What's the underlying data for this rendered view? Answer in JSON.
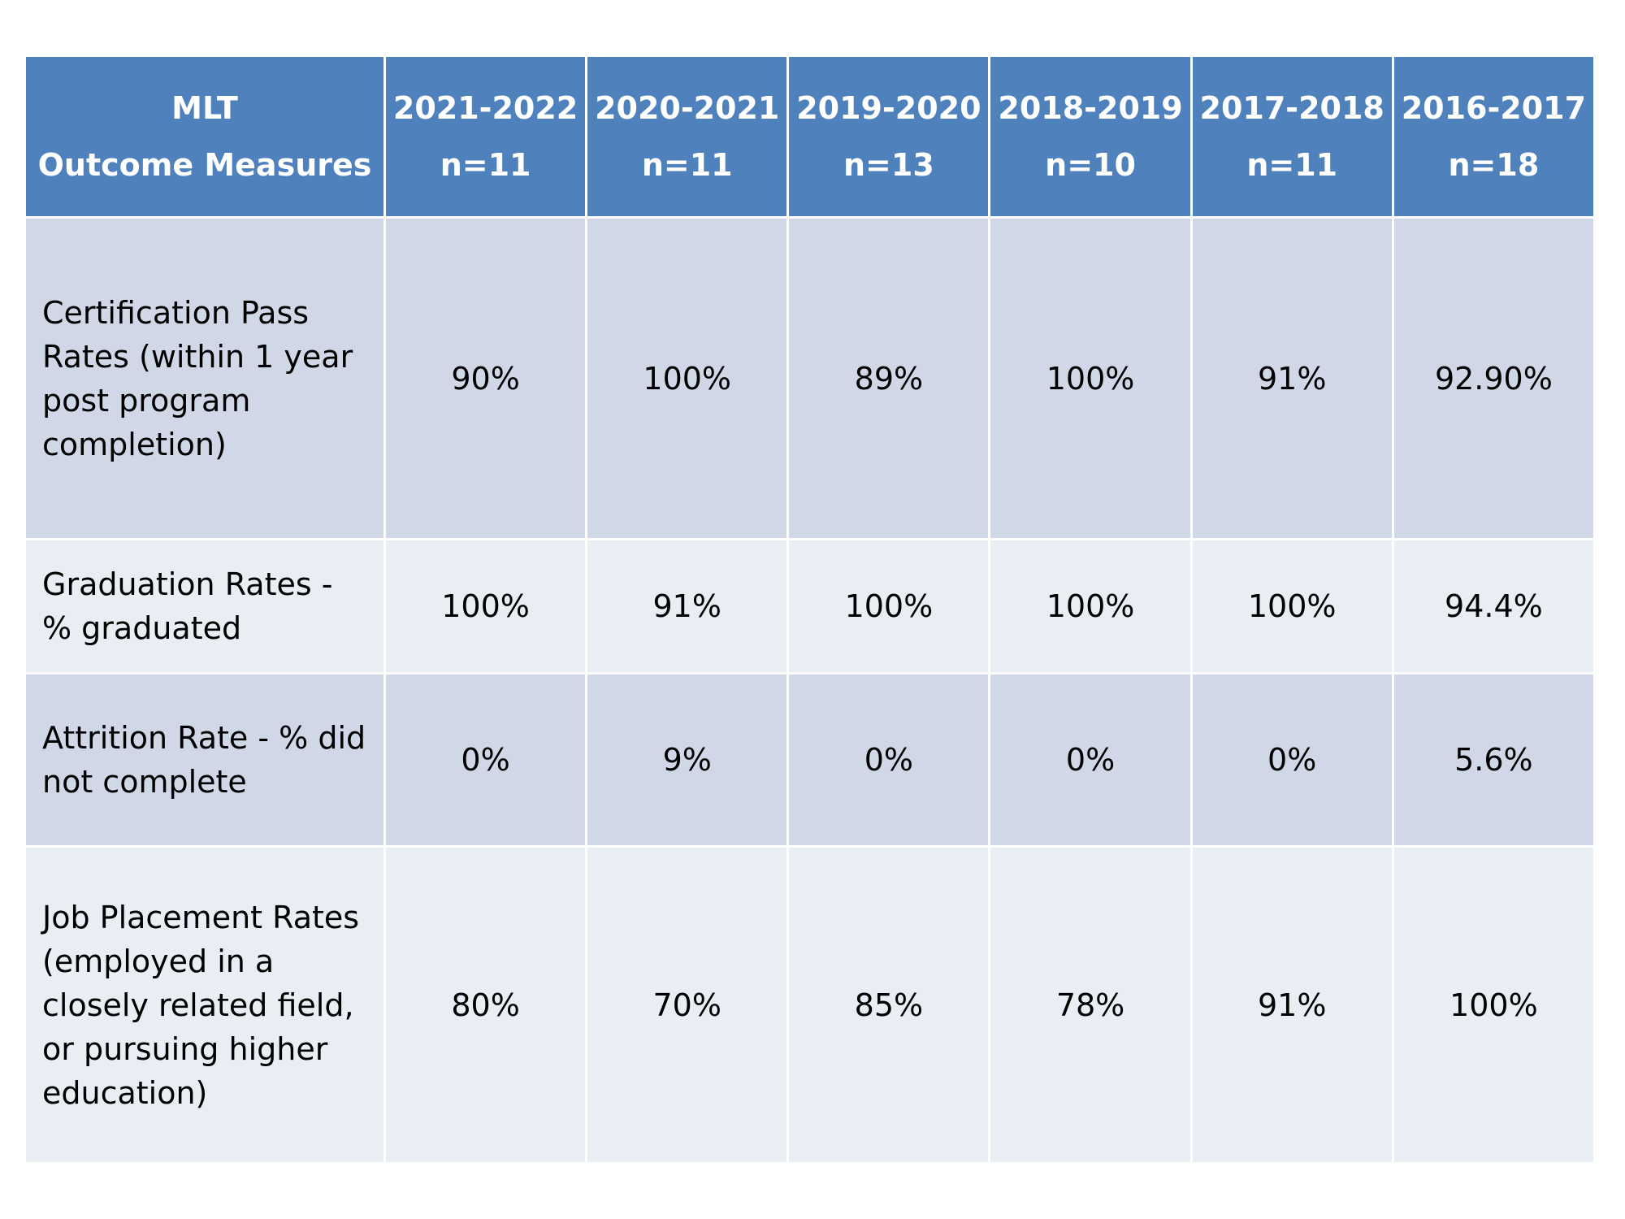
{
  "table": {
    "header": {
      "measure_title_line1": "MLT",
      "measure_title_line2": "Outcome Measures",
      "years": [
        {
          "label": "2021-2022",
          "n": "n=11"
        },
        {
          "label": "2020-2021",
          "n": "n=11"
        },
        {
          "label": "2019-2020",
          "n": "n=13"
        },
        {
          "label": "2018-2019",
          "n": "n=10"
        },
        {
          "label": "2017-2018",
          "n": "n=11"
        },
        {
          "label": "2016-2017",
          "n": "n=18"
        }
      ]
    },
    "rows": [
      {
        "measure": "Certification Pass Rates (within 1 year post program completion)",
        "values": [
          "90%",
          "100%",
          "89%",
          "100%",
          "91%",
          "92.90%"
        ]
      },
      {
        "measure": "Graduation Rates - % graduated",
        "values": [
          "100%",
          "91%",
          "100%",
          "100%",
          "100%",
          "94.4%"
        ]
      },
      {
        "measure": "Attrition Rate - % did not complete",
        "values": [
          "0%",
          "9%",
          "0%",
          "0%",
          "0%",
          "5.6%"
        ]
      },
      {
        "measure": "Job Placement Rates (employed in a closely related field, or pursuing higher education)",
        "values": [
          "80%",
          "70%",
          "85%",
          "78%",
          "91%",
          "100%"
        ]
      }
    ]
  },
  "colors": {
    "header_bg": "#4f81bd",
    "row_dark_bg": "#d0d8e8",
    "row_light_bg": "#e9edf4"
  }
}
